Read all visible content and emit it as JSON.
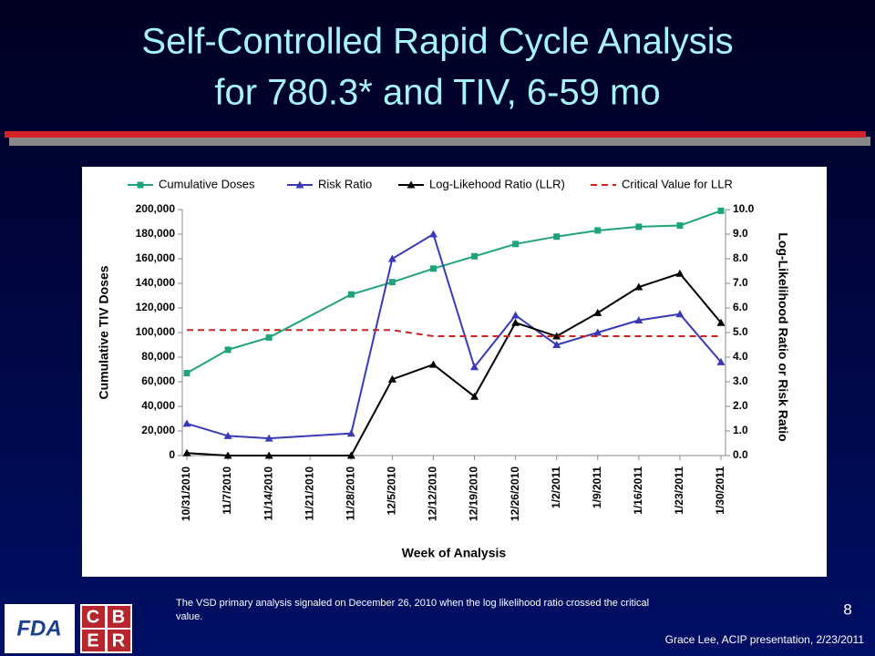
{
  "slide": {
    "title_lines": [
      "Self-Controlled Rapid Cycle Analysis",
      "for 780.3* and TIV, 6-59 mo"
    ],
    "footnote_lines": [
      "The VSD primary analysis signaled on December 26, 2010 when the log likelihood ratio crossed the critical",
      "value."
    ],
    "page_number": "8",
    "credit": "Grace Lee, ACIP presentation, 2/23/2011",
    "logo_fda": "FDA",
    "logo_cber": [
      "C",
      "B",
      "E",
      "R"
    ]
  },
  "chart_data": {
    "type": "line",
    "categories": [
      "10/31/2010",
      "11/7/2010",
      "11/14/2010",
      "11/21/2010",
      "11/28/2010",
      "12/5/2010",
      "12/12/2010",
      "12/19/2010",
      "12/26/2010",
      "1/2/2011",
      "1/9/2011",
      "1/16/2011",
      "1/23/2011",
      "1/30/2011"
    ],
    "x_label": "Week of Analysis",
    "y_label": "Cumulative TIV Doses",
    "y2_label": "Log-Likelihood Ratio or Risk Ratio",
    "connect_nulls": true,
    "ylim": [
      0,
      200000
    ],
    "yticks": [
      0,
      {
        "value": 20000,
        "label": "20,000"
      },
      {
        "value": 40000,
        "label": "40,000"
      },
      {
        "value": 60000,
        "label": "60,000"
      },
      {
        "value": 80000,
        "label": "80,000"
      },
      {
        "value": 100000,
        "label": "100,000"
      },
      {
        "value": 120000,
        "label": "120,000"
      },
      {
        "value": 140000,
        "label": "140,000"
      },
      {
        "value": 160000,
        "label": "160,000"
      },
      {
        "value": 180000,
        "label": "180,000"
      },
      {
        "value": 200000,
        "label": "200,000"
      }
    ],
    "y2lim": [
      0,
      10
    ],
    "y2ticks": [
      {
        "value": 0,
        "label": "0.0"
      },
      {
        "value": 1,
        "label": "1.0"
      },
      {
        "value": 2,
        "label": "2.0"
      },
      {
        "value": 3,
        "label": "3.0"
      },
      {
        "value": 4,
        "label": "4.0"
      },
      {
        "value": 5,
        "label": "5.0"
      },
      {
        "value": 6,
        "label": "6.0"
      },
      {
        "value": 7,
        "label": "7.0"
      },
      {
        "value": 8,
        "label": "8.0"
      },
      {
        "value": 9,
        "label": "9.0"
      },
      {
        "value": 10,
        "label": "10.0"
      }
    ],
    "series": [
      {
        "name": "Cumulative Doses",
        "color": "#1fa37c",
        "marker": "square",
        "values": [
          67000,
          86000,
          96000,
          null,
          131000,
          141000,
          152000,
          162000,
          172000,
          178000,
          183000,
          186000,
          187000,
          199000
        ]
      },
      {
        "name": "Risk Ratio",
        "color": "#3a3ab8",
        "marker": "triangle",
        "axis": "y2",
        "values": [
          1.3,
          0.8,
          0.7,
          null,
          0.9,
          8.0,
          9.0,
          3.6,
          5.7,
          4.5,
          5.0,
          5.5,
          5.75,
          3.8
        ]
      },
      {
        "name": "Log-Likehood Ratio (LLR)",
        "color": "#000000",
        "marker": "triangle",
        "axis": "y2",
        "values": [
          0.1,
          0.0,
          0.0,
          null,
          0.0,
          3.1,
          3.7,
          2.4,
          5.4,
          4.85,
          5.8,
          6.85,
          7.4,
          5.4
        ]
      },
      {
        "name": "Critical Value for LLR",
        "color": "#cc2222",
        "dashed": true,
        "axis": "y2",
        "values": [
          5.1,
          5.1,
          5.1,
          5.1,
          5.1,
          5.1,
          4.85,
          4.85,
          4.85,
          4.85,
          4.85,
          4.85,
          4.85,
          4.85
        ]
      }
    ]
  }
}
